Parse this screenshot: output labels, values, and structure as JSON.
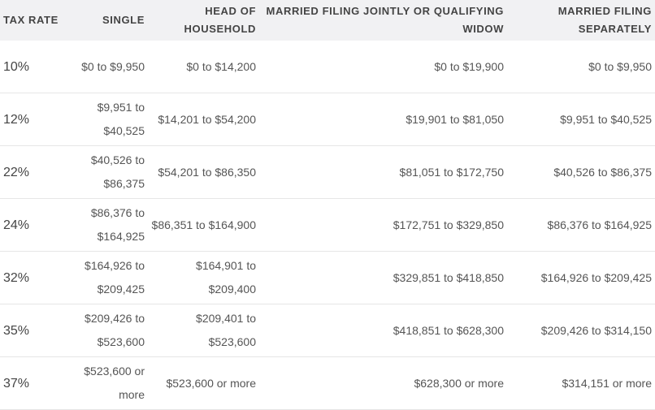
{
  "table": {
    "header": [
      "TAX RATE",
      "SINGLE",
      "HEAD OF HOUSEHOLD",
      "MARRIED FILING JOINTLY OR QUALIFYING WIDOW",
      "MARRIED FILING SEPARATELY"
    ],
    "rows": [
      [
        "10%",
        "$0 to $9,950",
        "$0 to $14,200",
        "$0 to $19,900",
        "$0 to $9,950"
      ],
      [
        "12%",
        "$9,951 to $40,525",
        "$14,201 to $54,200",
        "$19,901 to $81,050",
        "$9,951 to $40,525"
      ],
      [
        "22%",
        "$40,526 to $86,375",
        "$54,201 to $86,350",
        "$81,051 to $172,750",
        "$40,526 to $86,375"
      ],
      [
        "24%",
        "$86,376 to $164,925",
        "$86,351 to $164,900",
        "$172,751 to $329,850",
        "$86,376 to $164,925"
      ],
      [
        "32%",
        "$164,926 to $209,425",
        "$164,901 to $209,400",
        "$329,851 to $418,850",
        "$164,926 to $209,425"
      ],
      [
        "35%",
        "$209,426 to $523,600",
        "$209,401 to $523,600",
        "$418,851 to $628,300",
        "$209,426 to $314,150"
      ],
      [
        "37%",
        "$523,600 or more",
        "$523,600 or more",
        "$628,300 or more",
        "$314,151 or more"
      ]
    ]
  }
}
